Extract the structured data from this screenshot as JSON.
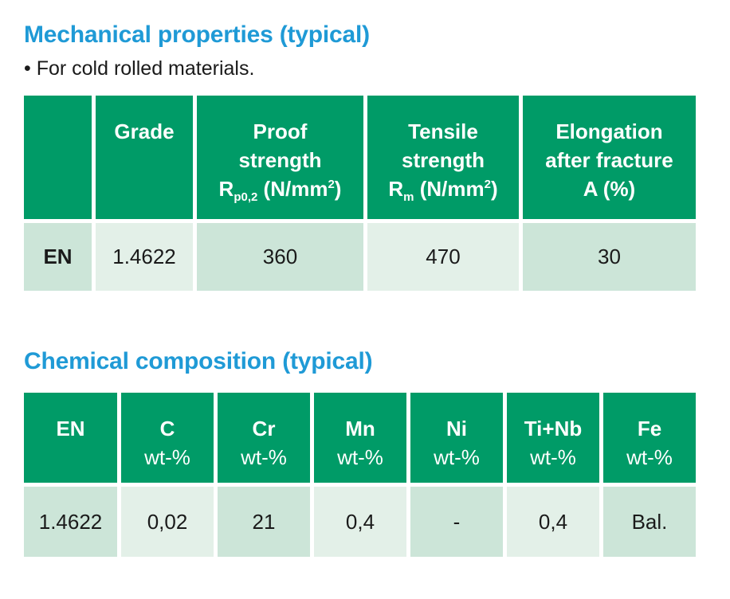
{
  "mechanical": {
    "title": "Mechanical properties (typical)",
    "note": "• For cold rolled materials.",
    "headers": {
      "grade": "Grade",
      "proof_line1": "Proof",
      "proof_line2": "strength",
      "proof_symbol": "R",
      "proof_sub": "p0,2",
      "proof_unit": " (N/mm",
      "proof_sup": "2",
      "proof_close": ")",
      "tensile_line1": "Tensile",
      "tensile_line2": "strength",
      "tensile_symbol": "R",
      "tensile_sub": "m",
      "tensile_unit": " (N/mm",
      "tensile_sup": "2",
      "tensile_close": ")",
      "elong_line1": "Elongation",
      "elong_line2": "after fracture",
      "elong_line3": "A (%)"
    },
    "row": {
      "standard": "EN",
      "grade": "1.4622",
      "proof": "360",
      "tensile": "470",
      "elongation": "30"
    }
  },
  "chemical": {
    "title": "Chemical composition (typical)",
    "unit": "wt-%",
    "headers": [
      "EN",
      "C",
      "Cr",
      "Mn",
      "Ni",
      "Ti+Nb",
      "Fe"
    ],
    "values": [
      "1.4622",
      "0,02",
      "21",
      "0,4",
      "-",
      "0,4",
      "Bal."
    ]
  },
  "colors": {
    "title": "#1f9ad6",
    "header_bg": "#009b67",
    "row_dark": "#cce5d8",
    "row_light": "#e3f0e8"
  }
}
